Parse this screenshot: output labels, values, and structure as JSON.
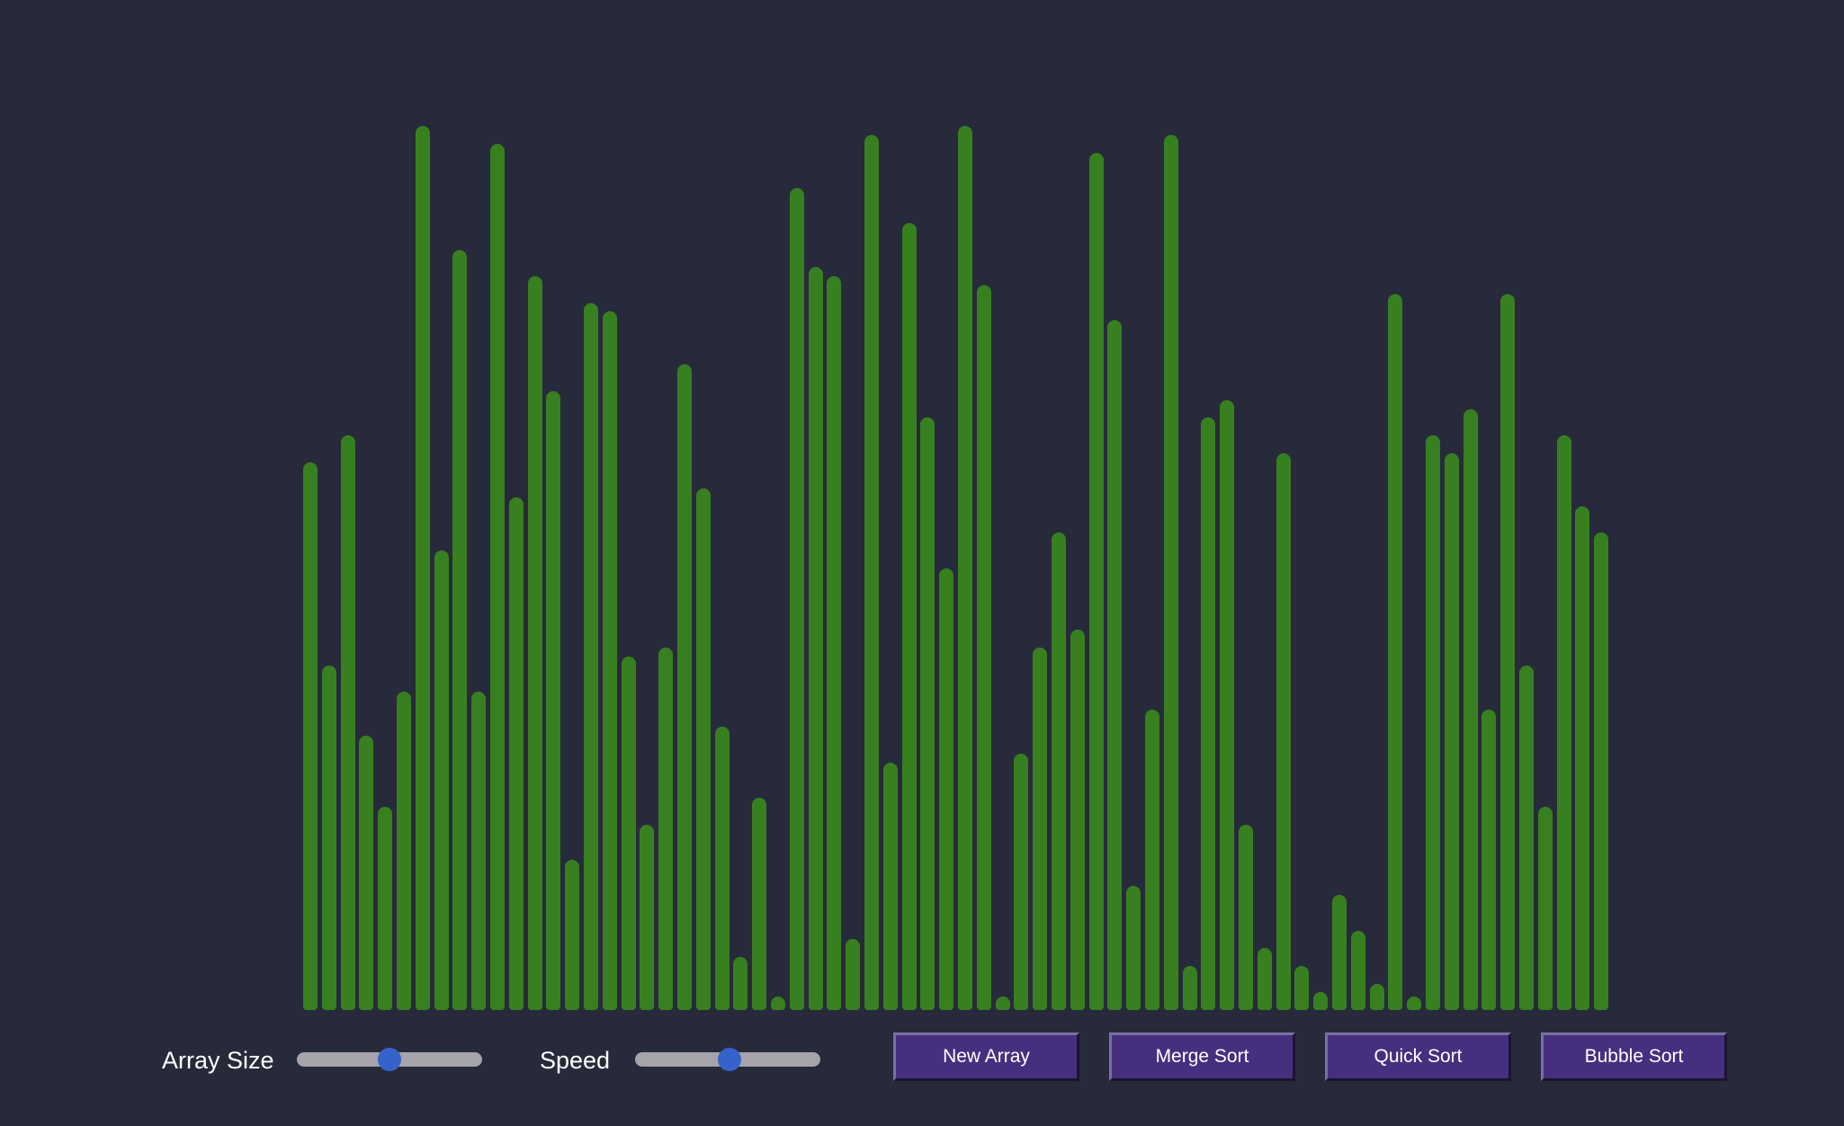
{
  "theme": {
    "background": "#272a3b",
    "bar_color": "#38801f",
    "button_color": "#472f7f",
    "slider_track": "#a4a4aa",
    "slider_thumb": "#3563c9"
  },
  "chart_data": {
    "type": "bar",
    "ylim": [
      0,
      100
    ],
    "values": [
      62,
      39,
      65,
      31,
      23,
      36,
      100,
      52,
      86,
      36,
      98,
      58,
      83,
      70,
      17,
      80,
      79,
      40,
      21,
      41,
      73,
      59,
      32,
      6,
      24,
      1,
      93,
      84,
      83,
      8,
      99,
      28,
      89,
      67,
      50,
      100,
      82,
      1,
      29,
      41,
      54,
      43,
      97,
      78,
      14,
      34,
      99,
      5,
      67,
      69,
      21,
      7,
      63,
      5,
      2,
      13,
      9,
      3,
      81,
      1,
      65,
      63,
      68,
      34,
      81,
      39,
      23,
      65,
      57,
      54
    ]
  },
  "controls": {
    "array_size": {
      "label": "Array Size",
      "value_fraction": 0.5
    },
    "speed": {
      "label": "Speed",
      "value_fraction": 0.51
    },
    "buttons": {
      "new_array": "New Array",
      "merge_sort": "Merge Sort",
      "quick_sort": "Quick Sort",
      "bubble_sort": "Bubble Sort"
    }
  }
}
